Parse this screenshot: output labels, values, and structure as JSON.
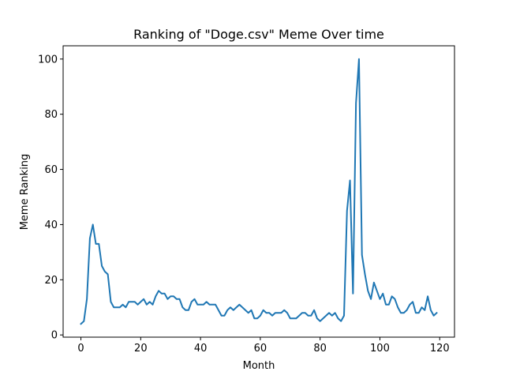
{
  "chart_data": {
    "type": "line",
    "title": "Ranking of \"Doge.csv\" Meme Over time",
    "xlabel": "Month",
    "ylabel": "Meme Ranking",
    "xlim": [
      -5.95,
      124.95
    ],
    "ylim": [
      -0.8,
      104.8
    ],
    "xticks": [
      0,
      20,
      40,
      60,
      80,
      100,
      120
    ],
    "yticks": [
      0,
      20,
      40,
      60,
      80,
      100
    ],
    "grid": false,
    "line_color": "#1f77b4",
    "series": [
      {
        "x": [
          0,
          1,
          2,
          3,
          4,
          5,
          6,
          7,
          8,
          9,
          10,
          11,
          12,
          13,
          14,
          15,
          16,
          17,
          18,
          19,
          20,
          21,
          22,
          23,
          24,
          25,
          26,
          27,
          28,
          29,
          30,
          31,
          32,
          33,
          34,
          35,
          36,
          37,
          38,
          39,
          40,
          41,
          42,
          43,
          44,
          45,
          46,
          47,
          48,
          49,
          50,
          51,
          52,
          53,
          54,
          55,
          56,
          57,
          58,
          59,
          60,
          61,
          62,
          63,
          64,
          65,
          66,
          67,
          68,
          69,
          70,
          71,
          72,
          73,
          74,
          75,
          76,
          77,
          78,
          79,
          80,
          81,
          82,
          83,
          84,
          85,
          86,
          87,
          88,
          89,
          90,
          91,
          92,
          93,
          94,
          95,
          96,
          97,
          98,
          99,
          100,
          101,
          102,
          103,
          104,
          105,
          106,
          107,
          108,
          109,
          110,
          111,
          112,
          113,
          114,
          115,
          116,
          117,
          118,
          119
        ],
        "values": [
          4,
          5,
          13,
          35,
          40,
          33,
          33,
          25,
          23,
          22,
          12,
          10,
          10,
          10,
          11,
          10,
          12,
          12,
          12,
          11,
          12,
          13,
          11,
          12,
          11,
          14,
          16,
          15,
          15,
          13,
          14,
          14,
          13,
          13,
          10,
          9,
          9,
          12,
          13,
          11,
          11,
          11,
          12,
          11,
          11,
          11,
          9,
          7,
          7,
          9,
          10,
          9,
          10,
          11,
          10,
          9,
          8,
          9,
          6,
          6,
          7,
          9,
          8,
          8,
          7,
          8,
          8,
          8,
          9,
          8,
          6,
          6,
          6,
          7,
          8,
          8,
          7,
          7,
          9,
          6,
          5,
          6,
          7,
          8,
          7,
          8,
          6,
          5,
          7,
          45,
          56,
          15,
          84,
          100,
          29,
          22,
          16,
          13,
          19,
          16,
          13,
          15,
          11,
          11,
          14,
          13,
          10,
          8,
          8,
          9,
          11,
          12,
          8,
          8,
          10,
          9,
          14,
          9,
          7,
          8
        ]
      }
    ]
  }
}
